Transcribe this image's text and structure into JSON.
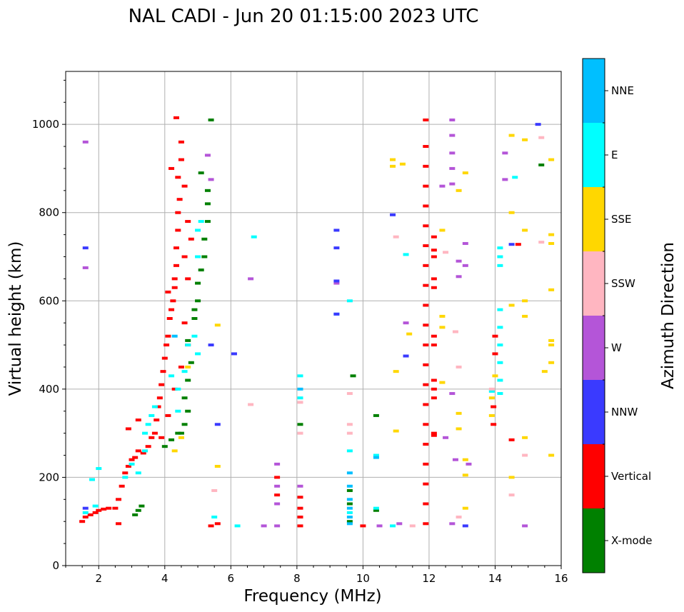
{
  "chart_data": {
    "type": "scatter",
    "title": "NAL CADI - Jun 20 01:15:00 2023 UTC",
    "xlabel": "Frequency (MHz)",
    "ylabel": "Virtual height (km)",
    "xlim": [
      1,
      16
    ],
    "ylim": [
      0,
      1120
    ],
    "xticks": [
      2,
      4,
      6,
      8,
      10,
      12,
      14,
      16
    ],
    "yticks": [
      0,
      200,
      400,
      600,
      800,
      1000
    ],
    "grid": true,
    "colorbar": {
      "label": "Azimuth Direction",
      "categories": [
        {
          "name": "X-mode",
          "color": "#008000"
        },
        {
          "name": "Vertical",
          "color": "#ff0000"
        },
        {
          "name": "NNW",
          "color": "#3a3aff"
        },
        {
          "name": "W",
          "color": "#b455d8"
        },
        {
          "name": "SSW",
          "color": "#ffb6c1"
        },
        {
          "name": "SSE",
          "color": "#ffd700"
        },
        {
          "name": "E",
          "color": "#00ffff"
        },
        {
          "name": "NNE",
          "color": "#00bfff"
        }
      ]
    },
    "series": [
      {
        "name": "Vertical",
        "color": "#ff0000",
        "points": [
          [
            1.5,
            100
          ],
          [
            1.6,
            110
          ],
          [
            1.75,
            115
          ],
          [
            1.9,
            120
          ],
          [
            2.0,
            125
          ],
          [
            2.15,
            128
          ],
          [
            2.3,
            130
          ],
          [
            2.5,
            130
          ],
          [
            2.6,
            150
          ],
          [
            2.7,
            180
          ],
          [
            2.8,
            210
          ],
          [
            2.9,
            225
          ],
          [
            3.0,
            240
          ],
          [
            3.1,
            245
          ],
          [
            3.2,
            260
          ],
          [
            3.35,
            255
          ],
          [
            3.5,
            270
          ],
          [
            3.6,
            290
          ],
          [
            3.7,
            300
          ],
          [
            3.75,
            330
          ],
          [
            3.8,
            360
          ],
          [
            3.85,
            380
          ],
          [
            3.9,
            410
          ],
          [
            3.95,
            440
          ],
          [
            4.0,
            470
          ],
          [
            4.05,
            500
          ],
          [
            4.1,
            520
          ],
          [
            4.15,
            560
          ],
          [
            4.2,
            580
          ],
          [
            4.25,
            600
          ],
          [
            4.3,
            630
          ],
          [
            4.3,
            650
          ],
          [
            4.35,
            680
          ],
          [
            4.35,
            720
          ],
          [
            4.4,
            760
          ],
          [
            4.4,
            800
          ],
          [
            4.45,
            830
          ],
          [
            4.4,
            880
          ],
          [
            4.5,
            920
          ],
          [
            4.5,
            960
          ],
          [
            4.35,
            1015
          ],
          [
            4.6,
            700
          ],
          [
            4.7,
            650
          ],
          [
            4.6,
            550
          ],
          [
            4.7,
            500
          ],
          [
            4.5,
            450
          ],
          [
            4.3,
            400
          ],
          [
            4.1,
            340
          ],
          [
            3.9,
            290
          ],
          [
            2.9,
            310
          ],
          [
            3.2,
            330
          ],
          [
            4.6,
            860
          ],
          [
            4.7,
            780
          ],
          [
            4.8,
            740
          ],
          [
            4.2,
            900
          ],
          [
            4.1,
            620
          ],
          [
            11.9,
            95
          ],
          [
            11.9,
            140
          ],
          [
            11.9,
            185
          ],
          [
            11.9,
            230
          ],
          [
            11.9,
            275
          ],
          [
            11.9,
            320
          ],
          [
            11.9,
            365
          ],
          [
            11.9,
            410
          ],
          [
            11.9,
            455
          ],
          [
            11.9,
            500
          ],
          [
            11.9,
            545
          ],
          [
            11.9,
            590
          ],
          [
            11.9,
            635
          ],
          [
            11.9,
            680
          ],
          [
            11.9,
            725
          ],
          [
            11.9,
            770
          ],
          [
            11.9,
            815
          ],
          [
            11.9,
            860
          ],
          [
            11.9,
            905
          ],
          [
            11.9,
            950
          ],
          [
            11.9,
            1010
          ],
          [
            12.15,
            295
          ],
          [
            12.15,
            300
          ],
          [
            12.15,
            380
          ],
          [
            12.15,
            400
          ],
          [
            12.15,
            420
          ],
          [
            12.15,
            500
          ],
          [
            12.15,
            520
          ],
          [
            12.15,
            630
          ],
          [
            12.15,
            650
          ],
          [
            12.15,
            700
          ],
          [
            12.15,
            715
          ],
          [
            12.15,
            745
          ],
          [
            8.1,
            90
          ],
          [
            8.1,
            110
          ],
          [
            8.1,
            130
          ],
          [
            8.1,
            155
          ],
          [
            7.4,
            160
          ],
          [
            7.4,
            200
          ],
          [
            5.6,
            95
          ],
          [
            5.4,
            90
          ],
          [
            2.6,
            95
          ],
          [
            13.95,
            320
          ],
          [
            13.95,
            360
          ],
          [
            14.0,
            480
          ],
          [
            14.0,
            520
          ],
          [
            14.5,
            285
          ],
          [
            14.7,
            728
          ],
          [
            10.0,
            90
          ]
        ]
      },
      {
        "name": "X-mode",
        "color": "#008000",
        "points": [
          [
            3.3,
            135
          ],
          [
            3.2,
            125
          ],
          [
            3.1,
            115
          ],
          [
            4.0,
            270
          ],
          [
            4.2,
            285
          ],
          [
            4.5,
            300
          ],
          [
            4.6,
            320
          ],
          [
            4.7,
            350
          ],
          [
            4.6,
            380
          ],
          [
            4.7,
            420
          ],
          [
            4.8,
            460
          ],
          [
            4.7,
            510
          ],
          [
            4.9,
            560
          ],
          [
            5.0,
            600
          ],
          [
            5.0,
            640
          ],
          [
            5.1,
            670
          ],
          [
            5.2,
            700
          ],
          [
            5.2,
            740
          ],
          [
            5.3,
            780
          ],
          [
            5.3,
            820
          ],
          [
            5.3,
            850
          ],
          [
            5.1,
            890
          ],
          [
            5.4,
            1010
          ],
          [
            4.9,
            580
          ],
          [
            4.4,
            300
          ],
          [
            8.1,
            320
          ],
          [
            9.6,
            100
          ],
          [
            9.6,
            140
          ],
          [
            9.6,
            170
          ],
          [
            9.7,
            430
          ],
          [
            10.4,
            125
          ],
          [
            10.4,
            340
          ],
          [
            15.4,
            908
          ]
        ]
      },
      {
        "name": "E",
        "color": "#00ffff",
        "points": [
          [
            1.6,
            120
          ],
          [
            1.9,
            135
          ],
          [
            2.0,
            220
          ],
          [
            2.8,
            200
          ],
          [
            3.0,
            230
          ],
          [
            3.2,
            210
          ],
          [
            3.4,
            300
          ],
          [
            3.5,
            320
          ],
          [
            3.6,
            340
          ],
          [
            3.7,
            360
          ],
          [
            3.4,
            260
          ],
          [
            4.2,
            430
          ],
          [
            4.4,
            400
          ],
          [
            4.4,
            350
          ],
          [
            4.6,
            440
          ],
          [
            4.7,
            500
          ],
          [
            4.9,
            520
          ],
          [
            5.0,
            480
          ],
          [
            5.0,
            700
          ],
          [
            5.0,
            760
          ],
          [
            5.1,
            780
          ],
          [
            5.5,
            110
          ],
          [
            6.2,
            90
          ],
          [
            6.7,
            745
          ],
          [
            8.1,
            430
          ],
          [
            8.1,
            380
          ],
          [
            9.6,
            120
          ],
          [
            9.6,
            600
          ],
          [
            9.6,
            260
          ],
          [
            10.4,
            250
          ],
          [
            10.4,
            130
          ],
          [
            10.9,
            90
          ],
          [
            11.3,
            705
          ],
          [
            14.15,
            390
          ],
          [
            14.15,
            420
          ],
          [
            14.15,
            460
          ],
          [
            14.15,
            500
          ],
          [
            14.15,
            540
          ],
          [
            14.15,
            580
          ],
          [
            14.15,
            680
          ],
          [
            14.15,
            700
          ],
          [
            14.15,
            720
          ],
          [
            13.9,
            395
          ],
          [
            14.6,
            880
          ],
          [
            1.8,
            195
          ]
        ]
      },
      {
        "name": "NNE",
        "color": "#00bfff",
        "points": [
          [
            9.6,
            95
          ],
          [
            9.6,
            110
          ],
          [
            9.6,
            130
          ],
          [
            9.6,
            150
          ],
          [
            9.6,
            180
          ],
          [
            9.6,
            210
          ],
          [
            9.2,
            570
          ],
          [
            10.4,
            245
          ],
          [
            8.1,
            400
          ],
          [
            4.3,
            520
          ]
        ]
      },
      {
        "name": "W",
        "color": "#b455d8",
        "points": [
          [
            1.6,
            675
          ],
          [
            1.6,
            960
          ],
          [
            5.3,
            930
          ],
          [
            5.4,
            875
          ],
          [
            6.6,
            650
          ],
          [
            7.4,
            90
          ],
          [
            7.4,
            140
          ],
          [
            7.4,
            180
          ],
          [
            7.4,
            230
          ],
          [
            8.1,
            180
          ],
          [
            9.2,
            640
          ],
          [
            11.3,
            550
          ],
          [
            12.5,
            290
          ],
          [
            12.7,
            390
          ],
          [
            12.9,
            655
          ],
          [
            12.9,
            690
          ],
          [
            13.1,
            680
          ],
          [
            13.1,
            730
          ],
          [
            12.7,
            975
          ],
          [
            12.7,
            1010
          ],
          [
            12.7,
            935
          ],
          [
            12.7,
            900
          ],
          [
            12.4,
            860
          ],
          [
            12.7,
            865
          ],
          [
            12.8,
            240
          ],
          [
            14.3,
            875
          ],
          [
            14.3,
            935
          ],
          [
            14.9,
            90
          ],
          [
            12.7,
            95
          ],
          [
            13.2,
            230
          ],
          [
            10.5,
            90
          ],
          [
            11.1,
            95
          ],
          [
            7.0,
            90
          ]
        ]
      },
      {
        "name": "NNW",
        "color": "#3a3aff",
        "points": [
          [
            1.6,
            130
          ],
          [
            1.6,
            720
          ],
          [
            9.2,
            760
          ],
          [
            9.2,
            720
          ],
          [
            9.2,
            645
          ],
          [
            9.2,
            570
          ],
          [
            10.9,
            795
          ],
          [
            11.3,
            475
          ],
          [
            6.1,
            480
          ],
          [
            5.6,
            320
          ],
          [
            5.4,
            500
          ],
          [
            15.3,
            1000
          ],
          [
            14.5,
            728
          ],
          [
            13.1,
            90
          ]
        ]
      },
      {
        "name": "SSW",
        "color": "#ffb6c1",
        "points": [
          [
            5.5,
            170
          ],
          [
            6.6,
            365
          ],
          [
            8.1,
            370
          ],
          [
            8.1,
            300
          ],
          [
            9.6,
            390
          ],
          [
            9.6,
            320
          ],
          [
            9.6,
            300
          ],
          [
            11.5,
            90
          ],
          [
            12.5,
            710
          ],
          [
            13.9,
            400
          ],
          [
            14.5,
            160
          ],
          [
            14.9,
            250
          ],
          [
            15.4,
            970
          ],
          [
            15.4,
            733
          ],
          [
            12.9,
            110
          ],
          [
            12.9,
            450
          ],
          [
            11.0,
            745
          ],
          [
            12.8,
            530
          ]
        ]
      },
      {
        "name": "SSE",
        "color": "#ffd700",
        "points": [
          [
            4.3,
            260
          ],
          [
            4.5,
            290
          ],
          [
            4.7,
            450
          ],
          [
            5.6,
            545
          ],
          [
            10.9,
            905
          ],
          [
            10.9,
            920
          ],
          [
            11.2,
            910
          ],
          [
            11.0,
            440
          ],
          [
            11.0,
            305
          ],
          [
            11.4,
            525
          ],
          [
            12.4,
            415
          ],
          [
            12.4,
            540
          ],
          [
            12.4,
            565
          ],
          [
            12.9,
            345
          ],
          [
            12.9,
            310
          ],
          [
            13.1,
            240
          ],
          [
            13.1,
            205
          ],
          [
            13.1,
            130
          ],
          [
            13.1,
            890
          ],
          [
            12.9,
            850
          ],
          [
            12.4,
            760
          ],
          [
            14.5,
            975
          ],
          [
            14.5,
            800
          ],
          [
            14.5,
            590
          ],
          [
            14.5,
            200
          ],
          [
            14.9,
            965
          ],
          [
            14.9,
            760
          ],
          [
            14.9,
            600
          ],
          [
            14.9,
            565
          ],
          [
            14.9,
            290
          ],
          [
            15.5,
            440
          ],
          [
            15.7,
            920
          ],
          [
            15.7,
            750
          ],
          [
            15.7,
            730
          ],
          [
            15.7,
            625
          ],
          [
            15.7,
            510
          ],
          [
            15.7,
            500
          ],
          [
            15.7,
            460
          ],
          [
            15.7,
            250
          ],
          [
            13.9,
            340
          ],
          [
            13.9,
            380
          ],
          [
            14.0,
            430
          ],
          [
            5.6,
            225
          ]
        ]
      }
    ]
  }
}
